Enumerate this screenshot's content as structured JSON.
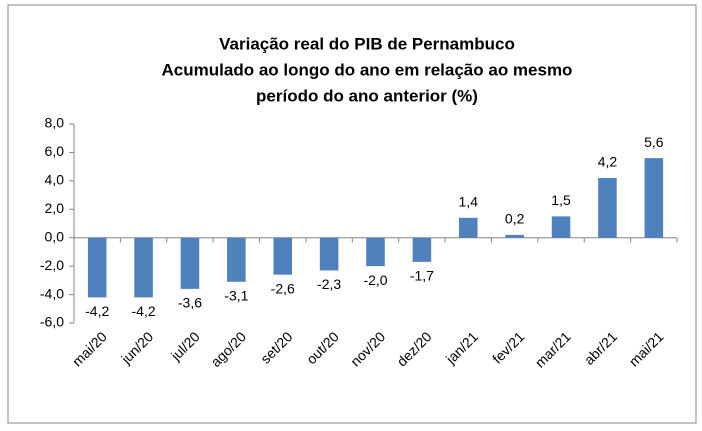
{
  "chart_data": {
    "type": "bar",
    "title": [
      "Variação real do PIB de Pernambuco",
      "Acumulado ao longo do ano em relação ao mesmo",
      "período do ano anterior (%)"
    ],
    "categories": [
      "mai/20",
      "jun/20",
      "jul/20",
      "ago/20",
      "set/20",
      "out/20",
      "nov/20",
      "dez/20",
      "jan/21",
      "fev/21",
      "mar/21",
      "abr/21",
      "mai/21"
    ],
    "values": [
      -4.2,
      -4.2,
      -3.6,
      -3.1,
      -2.6,
      -2.3,
      -2.0,
      -1.7,
      1.4,
      0.2,
      1.5,
      4.2,
      5.6
    ],
    "value_labels": [
      "-4,2",
      "-4,2",
      "-3,6",
      "-3,1",
      "-2,6",
      "-2,3",
      "-2,0",
      "-1,7",
      "1,4",
      "0,2",
      "1,5",
      "4,2",
      "5,6"
    ],
    "color": "#4f81bd",
    "ylim": [
      -6,
      8
    ],
    "yticks": [
      {
        "value": -6,
        "label": "-6,0"
      },
      {
        "value": -4,
        "label": "-4,0"
      },
      {
        "value": -2,
        "label": "-2,0"
      },
      {
        "value": 0,
        "label": "0,0"
      },
      {
        "value": 2,
        "label": "2,0"
      },
      {
        "value": 4,
        "label": "4,0"
      },
      {
        "value": 6,
        "label": "6,0"
      },
      {
        "value": 8,
        "label": "8,0"
      }
    ],
    "grid": false
  }
}
